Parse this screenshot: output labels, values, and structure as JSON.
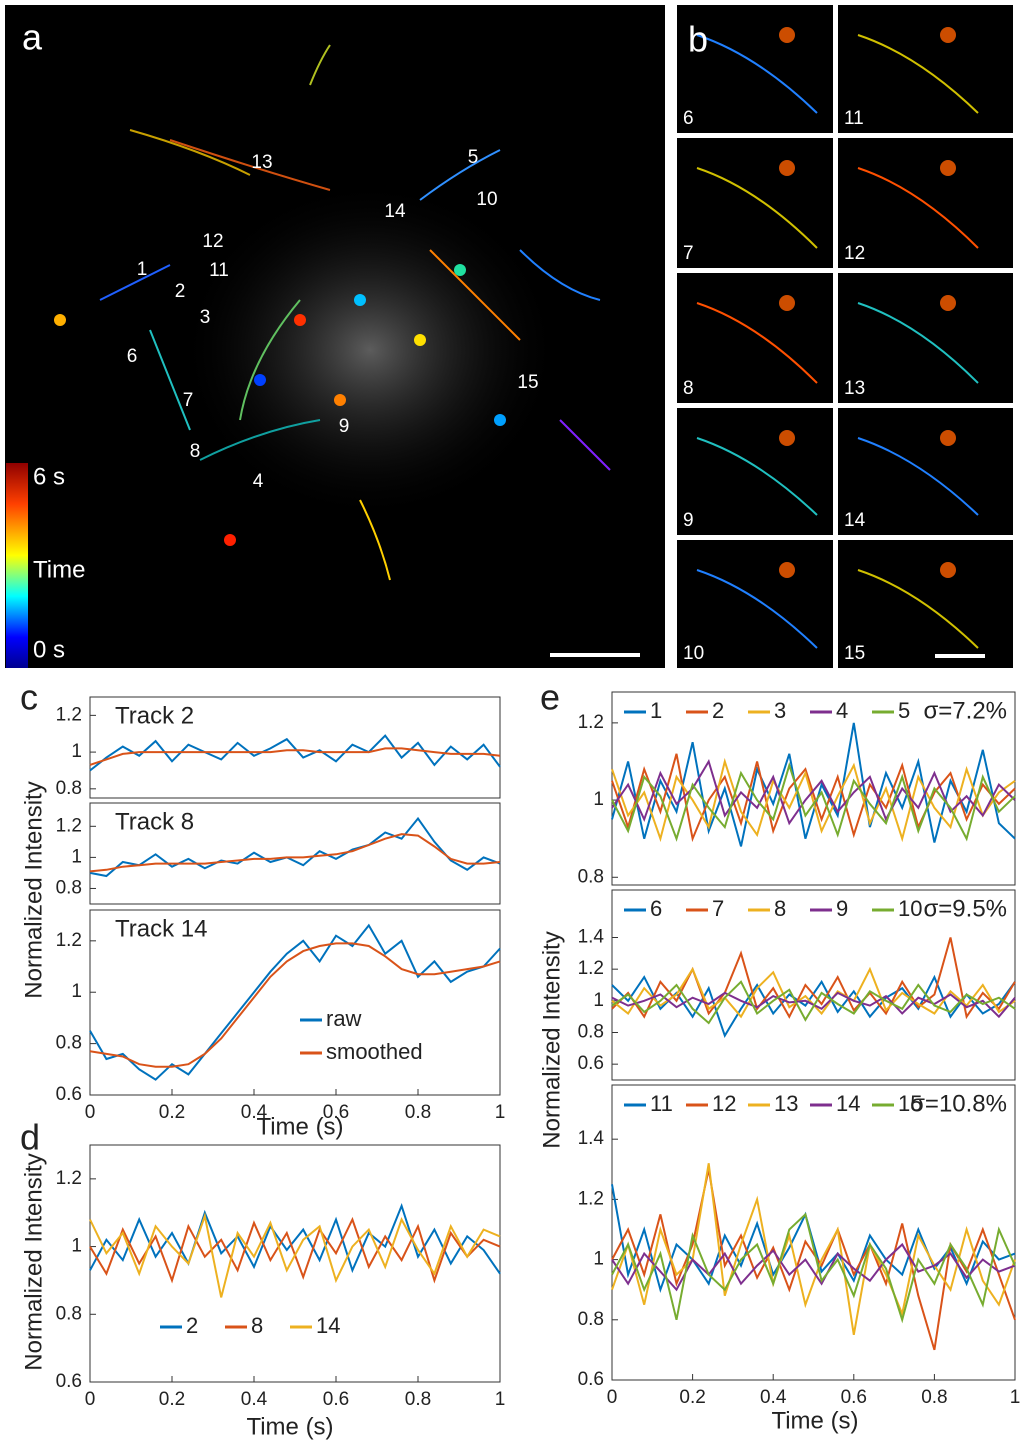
{
  "figure": {
    "panel_a": {
      "label": "a",
      "colorbar": {
        "max": "6 s",
        "title": "Time",
        "min": "0 s"
      },
      "track_labels": [
        "1",
        "2",
        "3",
        "4",
        "5",
        "6",
        "7",
        "8",
        "9",
        "10",
        "11",
        "12",
        "13",
        "14",
        "15"
      ]
    },
    "panel_b": {
      "label": "b",
      "insets": [
        "6",
        "7",
        "8",
        "9",
        "10",
        "11",
        "12",
        "13",
        "14",
        "15"
      ]
    },
    "panel_c": "c",
    "panel_d": "d",
    "panel_e": "e"
  },
  "chart_data": [
    {
      "type": "line",
      "title": "Track 2",
      "xlim": [
        0,
        1
      ],
      "ylim": [
        0.75,
        1.3
      ],
      "yticks": [
        0.8,
        1,
        1.2
      ],
      "legend": false,
      "x": [
        0,
        0.04,
        0.08,
        0.12,
        0.16,
        0.2,
        0.24,
        0.28,
        0.32,
        0.36,
        0.4,
        0.44,
        0.48,
        0.52,
        0.56,
        0.6,
        0.64,
        0.68,
        0.72,
        0.76,
        0.8,
        0.84,
        0.88,
        0.92,
        0.96,
        1
      ],
      "series": [
        {
          "name": "raw",
          "color": "#0072BD",
          "values": [
            0.9,
            0.97,
            1.03,
            0.98,
            1.06,
            0.95,
            1.04,
            1.0,
            0.96,
            1.05,
            0.98,
            1.02,
            1.07,
            0.97,
            1.01,
            0.95,
            1.04,
            1.0,
            1.09,
            0.97,
            1.05,
            0.93,
            1.03,
            0.96,
            1.04,
            0.92
          ]
        },
        {
          "name": "smoothed",
          "color": "#D95319",
          "values": [
            0.93,
            0.96,
            0.99,
            1.0,
            1.0,
            1.0,
            1.0,
            1.0,
            1.0,
            1.0,
            1.0,
            1.0,
            1.01,
            1.01,
            1.0,
            1.0,
            1.0,
            1.0,
            1.02,
            1.02,
            1.01,
            1.0,
            0.99,
            0.99,
            0.99,
            0.98
          ]
        }
      ]
    },
    {
      "type": "line",
      "title": "Track 8",
      "ylabel": "Normalized Intensity",
      "xlim": [
        0,
        1
      ],
      "ylim": [
        0.7,
        1.35
      ],
      "yticks": [
        0.8,
        1,
        1.2
      ],
      "legend": false,
      "x": [
        0,
        0.04,
        0.08,
        0.12,
        0.16,
        0.2,
        0.24,
        0.28,
        0.32,
        0.36,
        0.4,
        0.44,
        0.48,
        0.52,
        0.56,
        0.6,
        0.64,
        0.68,
        0.72,
        0.76,
        0.8,
        0.84,
        0.88,
        0.92,
        0.96,
        1
      ],
      "series": [
        {
          "name": "raw",
          "color": "#0072BD",
          "values": [
            0.9,
            0.88,
            0.97,
            0.95,
            1.02,
            0.94,
            0.99,
            0.93,
            0.98,
            0.96,
            1.03,
            0.97,
            1.0,
            0.95,
            1.04,
            0.99,
            1.05,
            1.08,
            1.16,
            1.12,
            1.25,
            1.1,
            0.98,
            0.92,
            1.0,
            0.96
          ]
        },
        {
          "name": "smoothed",
          "color": "#D95319",
          "values": [
            0.91,
            0.92,
            0.94,
            0.95,
            0.96,
            0.96,
            0.96,
            0.96,
            0.97,
            0.98,
            0.99,
            0.99,
            1.0,
            1.0,
            1.01,
            1.02,
            1.04,
            1.08,
            1.12,
            1.15,
            1.14,
            1.07,
            0.99,
            0.96,
            0.96,
            0.97
          ]
        }
      ]
    },
    {
      "type": "line",
      "title": "Track 14",
      "xlabel": "Time (s)",
      "xlim": [
        0,
        1
      ],
      "ylim": [
        0.6,
        1.32
      ],
      "yticks": [
        0.6,
        0.8,
        1,
        1.2
      ],
      "xticks": [
        0,
        0.2,
        0.4,
        0.6,
        0.8,
        1
      ],
      "legend": "lower right",
      "x": [
        0,
        0.04,
        0.08,
        0.12,
        0.16,
        0.2,
        0.24,
        0.28,
        0.32,
        0.36,
        0.4,
        0.44,
        0.48,
        0.52,
        0.56,
        0.6,
        0.64,
        0.68,
        0.72,
        0.76,
        0.8,
        0.84,
        0.88,
        0.92,
        0.96,
        1
      ],
      "series": [
        {
          "name": "raw",
          "color": "#0072BD",
          "values": [
            0.85,
            0.74,
            0.76,
            0.7,
            0.66,
            0.72,
            0.68,
            0.76,
            0.84,
            0.92,
            1.0,
            1.08,
            1.15,
            1.2,
            1.12,
            1.22,
            1.18,
            1.26,
            1.15,
            1.2,
            1.06,
            1.12,
            1.04,
            1.08,
            1.1,
            1.17
          ]
        },
        {
          "name": "smoothed",
          "color": "#D95319",
          "values": [
            0.77,
            0.76,
            0.75,
            0.72,
            0.71,
            0.71,
            0.72,
            0.76,
            0.82,
            0.9,
            0.98,
            1.06,
            1.12,
            1.16,
            1.18,
            1.19,
            1.19,
            1.18,
            1.14,
            1.09,
            1.07,
            1.07,
            1.08,
            1.09,
            1.1,
            1.12
          ]
        }
      ]
    },
    {
      "type": "line",
      "ylabel": "Normalized Intensity",
      "xlabel": "Time (s)",
      "xlim": [
        0,
        1
      ],
      "ylim": [
        0.6,
        1.3
      ],
      "yticks": [
        0.6,
        0.8,
        1,
        1.2
      ],
      "xticks": [
        0,
        0.2,
        0.4,
        0.6,
        0.8,
        1
      ],
      "legend": "lower left",
      "x": [
        0,
        0.04,
        0.08,
        0.12,
        0.16,
        0.2,
        0.24,
        0.28,
        0.32,
        0.36,
        0.4,
        0.44,
        0.48,
        0.52,
        0.56,
        0.6,
        0.64,
        0.68,
        0.72,
        0.76,
        0.8,
        0.84,
        0.88,
        0.92,
        0.96,
        1
      ],
      "series": [
        {
          "name": "2",
          "color": "#0072BD",
          "values": [
            0.93,
            1.02,
            0.96,
            1.08,
            0.97,
            1.04,
            0.95,
            1.1,
            0.98,
            1.03,
            0.94,
            1.06,
            0.99,
            1.05,
            0.96,
            1.08,
            0.93,
            1.04,
            1.0,
            1.12,
            0.97,
            1.05,
            0.95,
            1.03,
            0.99,
            0.92
          ]
        },
        {
          "name": "8",
          "color": "#D95319",
          "values": [
            1.0,
            0.92,
            1.05,
            0.95,
            1.03,
            0.9,
            1.06,
            0.97,
            1.02,
            0.93,
            1.07,
            0.96,
            1.04,
            0.91,
            1.05,
            0.98,
            1.08,
            0.94,
            1.03,
            0.96,
            1.06,
            0.9,
            1.04,
            0.97,
            1.02,
            1.0
          ]
        },
        {
          "name": "14",
          "color": "#EDB120",
          "values": [
            1.08,
            0.98,
            1.04,
            0.92,
            1.06,
            1.0,
            0.95,
            1.09,
            0.85,
            1.04,
            0.97,
            1.07,
            0.93,
            1.02,
            1.06,
            0.9,
            1.0,
            1.05,
            0.94,
            1.08,
            0.99,
            0.92,
            1.06,
            0.97,
            1.05,
            1.03
          ]
        }
      ]
    },
    {
      "type": "line",
      "annotation": "σ=7.2%",
      "xlim": [
        0,
        1
      ],
      "ylim": [
        0.78,
        1.28
      ],
      "yticks": [
        0.8,
        1,
        1.2
      ],
      "legend": "top",
      "x": [
        0,
        0.04,
        0.08,
        0.12,
        0.16,
        0.2,
        0.24,
        0.28,
        0.32,
        0.36,
        0.4,
        0.44,
        0.48,
        0.52,
        0.56,
        0.6,
        0.64,
        0.68,
        0.72,
        0.76,
        0.8,
        0.84,
        0.88,
        0.92,
        0.96,
        1
      ],
      "series": [
        {
          "name": "1",
          "color": "#0072BD",
          "values": [
            0.95,
            1.1,
            0.9,
            1.05,
            0.97,
            1.15,
            0.92,
            1.03,
            0.88,
            1.08,
            0.99,
            1.12,
            0.9,
            1.04,
            0.96,
            1.2,
            0.93,
            1.07,
            0.98,
            1.1,
            0.89,
            1.05,
            0.97,
            1.13,
            0.94,
            0.9
          ]
        },
        {
          "name": "2",
          "color": "#D95319",
          "values": [
            1.05,
            0.93,
            1.08,
            0.97,
            1.12,
            0.9,
            1.0,
            1.06,
            0.94,
            1.1,
            0.92,
            1.03,
            1.08,
            0.95,
            1.06,
            0.91,
            1.04,
            0.98,
            1.09,
            0.93,
            1.02,
            1.07,
            0.95,
            1.04,
            0.99,
            1.03
          ]
        },
        {
          "name": "3",
          "color": "#EDB120",
          "values": [
            1.08,
            0.96,
            1.02,
            0.9,
            1.06,
            1.0,
            0.93,
            1.1,
            0.97,
            0.91,
            1.05,
            0.98,
            1.07,
            0.92,
            1.01,
            1.09,
            0.94,
            1.03,
            0.9,
            1.06,
            0.98,
            0.93,
            1.08,
            0.96,
            1.02,
            1.05
          ]
        },
        {
          "name": "4",
          "color": "#7E2F8E",
          "values": [
            0.98,
            1.04,
            0.95,
            1.07,
            0.99,
            1.03,
            1.1,
            0.96,
            1.02,
            0.98,
            1.06,
            0.94,
            1.0,
            1.05,
            0.97,
            1.02,
            1.06,
            0.95,
            1.03,
            0.98,
            1.07,
            0.97,
            1.01,
            0.96,
            1.04,
            1.0
          ]
        },
        {
          "name": "5",
          "color": "#77AC30",
          "values": [
            1.0,
            0.92,
            1.06,
            1.01,
            0.9,
            1.04,
            0.98,
            0.93,
            1.07,
            1.0,
            0.95,
            1.09,
            0.96,
            1.02,
            0.91,
            1.05,
            0.99,
            0.94,
            1.06,
            0.92,
            1.03,
            0.98,
            0.9,
            1.06,
            0.97,
            1.01
          ]
        }
      ]
    },
    {
      "type": "line",
      "annotation": "σ=9.5%",
      "ylabel": "Normalized Intensity",
      "xlim": [
        0,
        1
      ],
      "ylim": [
        0.5,
        1.7
      ],
      "yticks": [
        0.6,
        0.8,
        1,
        1.2,
        1.4
      ],
      "legend": "top",
      "x": [
        0,
        0.04,
        0.08,
        0.12,
        0.16,
        0.2,
        0.24,
        0.28,
        0.32,
        0.36,
        0.4,
        0.44,
        0.48,
        0.52,
        0.56,
        0.6,
        0.64,
        0.68,
        0.72,
        0.76,
        0.8,
        0.84,
        0.88,
        0.92,
        0.96,
        1
      ],
      "series": [
        {
          "name": "6",
          "color": "#0072BD",
          "values": [
            1.1,
            1.0,
            1.15,
            0.95,
            1.05,
            0.9,
            1.08,
            0.78,
            0.95,
            1.1,
            0.92,
            1.04,
            0.97,
            1.12,
            0.93,
            1.06,
            0.9,
            1.02,
            1.08,
            0.95,
            1.15,
            0.9,
            1.04,
            0.92,
            0.98,
            1.12
          ]
        },
        {
          "name": "7",
          "color": "#D95319",
          "values": [
            0.95,
            1.05,
            0.9,
            1.12,
            1.0,
            1.2,
            0.92,
            1.05,
            1.3,
            0.95,
            1.08,
            0.9,
            1.1,
            0.98,
            1.15,
            0.94,
            1.05,
            0.92,
            1.12,
            0.96,
            1.04,
            1.4,
            0.9,
            1.05,
            0.95,
            1.12
          ]
        },
        {
          "name": "8",
          "color": "#EDB120",
          "values": [
            1.0,
            0.92,
            1.08,
            0.97,
            1.04,
            1.2,
            0.95,
            1.02,
            0.9,
            1.08,
            1.18,
            0.96,
            1.03,
            0.92,
            1.06,
            1.0,
            1.2,
            0.94,
            1.05,
            0.98,
            0.92,
            1.06,
            0.97,
            1.1,
            0.93,
            1.0
          ]
        },
        {
          "name": "9",
          "color": "#7E2F8E",
          "values": [
            1.02,
            0.97,
            1.0,
            1.04,
            0.96,
            1.02,
            0.98,
            1.05,
            1.0,
            0.96,
            1.03,
            0.99,
            1.0,
            0.95,
            1.05,
            1.0,
            0.97,
            1.03,
            0.92,
            1.02,
            0.98,
            1.04,
            0.96,
            1.0,
            0.9,
            1.02
          ]
        },
        {
          "name": "10",
          "color": "#77AC30",
          "values": [
            0.97,
            1.04,
            0.93,
            1.0,
            1.1,
            0.95,
            0.86,
            1.02,
            1.12,
            0.92,
            1.0,
            1.07,
            0.88,
            1.05,
            0.98,
            0.92,
            1.06,
            1.0,
            0.95,
            1.1,
            0.97,
            0.93,
            1.04,
            0.98,
            1.02,
            0.95
          ]
        }
      ]
    },
    {
      "type": "line",
      "annotation": "σ=10.8%",
      "xlabel": "Time (s)",
      "xlim": [
        0,
        1
      ],
      "ylim": [
        0.6,
        1.58
      ],
      "yticks": [
        0.6,
        0.8,
        1,
        1.2,
        1.4
      ],
      "xticks": [
        0,
        0.2,
        0.4,
        0.6,
        0.8,
        1
      ],
      "legend": "top",
      "x": [
        0,
        0.04,
        0.08,
        0.12,
        0.16,
        0.2,
        0.24,
        0.28,
        0.32,
        0.36,
        0.4,
        0.44,
        0.48,
        0.52,
        0.56,
        0.6,
        0.64,
        0.68,
        0.72,
        0.76,
        0.8,
        0.84,
        0.88,
        0.92,
        0.96,
        1
      ],
      "series": [
        {
          "name": "11",
          "color": "#0072BD",
          "values": [
            1.25,
            0.95,
            1.1,
            0.9,
            1.05,
            1.0,
            0.92,
            1.08,
            0.98,
            1.12,
            0.95,
            1.04,
            1.15,
            0.96,
            1.02,
            0.93,
            1.08,
            1.0,
            0.95,
            1.1,
            0.97,
            1.04,
            0.92,
            1.06,
            1.0,
            1.02
          ]
        },
        {
          "name": "12",
          "color": "#D95319",
          "values": [
            1.0,
            1.1,
            0.95,
            1.15,
            0.92,
            1.05,
            1.3,
            0.98,
            1.08,
            0.94,
            1.04,
            0.9,
            1.06,
            0.98,
            1.1,
            0.95,
            1.05,
            0.92,
            1.12,
            0.88,
            0.7,
            1.05,
            0.96,
            1.1,
            0.95,
            0.8
          ]
        },
        {
          "name": "13",
          "color": "#EDB120",
          "values": [
            0.9,
            1.05,
            0.85,
            1.1,
            0.95,
            1.0,
            1.32,
            0.88,
            1.05,
            1.2,
            0.92,
            1.08,
            0.85,
            1.0,
            1.1,
            0.75,
            1.05,
            0.95,
            0.82,
            1.08,
            0.98,
            0.9,
            1.1,
            0.93,
            0.85,
            1.0
          ]
        },
        {
          "name": "14",
          "color": "#7E2F8E",
          "values": [
            1.0,
            0.92,
            1.02,
            0.96,
            0.9,
            1.0,
            0.95,
            1.02,
            0.92,
            0.98,
            1.03,
            0.95,
            1.0,
            0.92,
            1.02,
            0.97,
            0.93,
            1.0,
            1.05,
            0.96,
            0.98,
            1.02,
            0.94,
            1.0,
            0.96,
            0.98
          ]
        },
        {
          "name": "15",
          "color": "#77AC30",
          "values": [
            0.95,
            1.05,
            0.9,
            1.02,
            0.8,
            1.08,
            0.95,
            0.9,
            1.0,
            1.05,
            0.92,
            1.1,
            1.15,
            0.93,
            1.0,
            0.88,
            1.05,
            0.97,
            0.8,
            1.0,
            0.92,
            1.05,
            0.97,
            0.85,
            1.1,
            0.98
          ]
        }
      ]
    }
  ]
}
